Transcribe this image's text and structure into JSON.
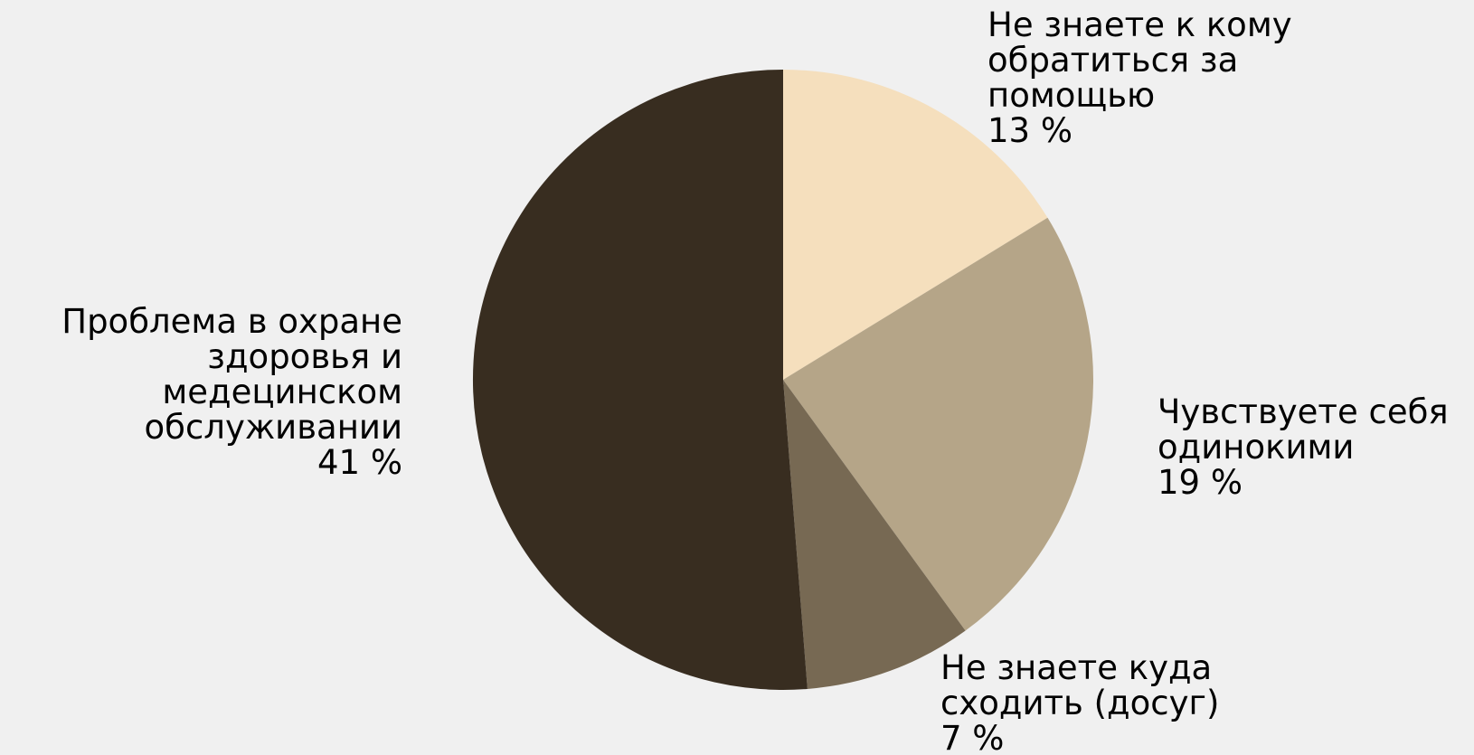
{
  "chart_data": {
    "type": "pie",
    "start_angle_deg": 0,
    "direction": "clockwise",
    "background": "#f0f0f0",
    "text_color": "#000000",
    "slices": [
      {
        "label_lines": [
          "Не знаете к кому",
          "обратиться за",
          "помощью"
        ],
        "value_label": "13 %",
        "value": 13,
        "color": "#f5dfbd",
        "label_align": "start"
      },
      {
        "label_lines": [
          "Чувствуете себя",
          "одинокими"
        ],
        "value_label": "19 %",
        "value": 19,
        "color": "#b5a588",
        "label_align": "start"
      },
      {
        "label_lines": [
          "Не знаете куда",
          "сходить (досуг)"
        ],
        "value_label": "7 %",
        "value": 7,
        "color": "#776953",
        "label_align": "start"
      },
      {
        "label_lines": [
          "Проблема в охране",
          "здоровья и",
          "медецинском",
          "обслуживании"
        ],
        "value_label": "41 %",
        "value": 41,
        "color": "#382d20",
        "label_align": "end"
      }
    ]
  }
}
